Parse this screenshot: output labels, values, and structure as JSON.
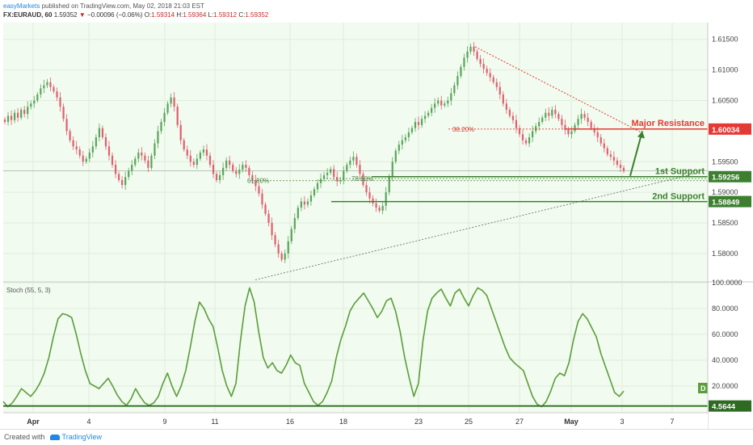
{
  "header": {
    "brand": "easyMarkets",
    "published_text": "published on TradingView.com, May 02, 2018 21:03 EST",
    "symbol": "FX:EURAUD, 60",
    "last": "1.59352",
    "change": "−0.00096 (−0.06%)",
    "o_label": "O:",
    "o_val": "1.59314",
    "h_label": "H:",
    "h_val": "1.59364",
    "l_label": "L:",
    "l_val": "1.59312",
    "c_label": "C:",
    "c_val": "1.59352"
  },
  "footer": {
    "created_with": "Created with",
    "brand": "TradingView"
  },
  "colors": {
    "background": "#f1fbef",
    "candle_up": "#5aa55c",
    "candle_down": "#e06070",
    "support": "#3b7f2f",
    "resistance": "#e53935",
    "stoch": "#5b9d3a"
  },
  "chart_data": [
    {
      "type": "candlestick",
      "symbol": "FX:EURAUD",
      "timeframe": "60",
      "ylim": [
        1.5755,
        1.618
      ],
      "y_ticks": [
        {
          "v": 1.615,
          "label": "1.61500"
        },
        {
          "v": 1.61,
          "label": "1.61000"
        },
        {
          "v": 1.605,
          "label": "1.60500"
        },
        {
          "v": 1.595,
          "label": "1.59500"
        },
        {
          "v": 1.59,
          "label": "1.59000"
        },
        {
          "v": 1.585,
          "label": "1.58500"
        },
        {
          "v": 1.58,
          "label": "1.58000"
        }
      ],
      "x_ticks": [
        "Apr",
        "4",
        "9",
        "11",
        "16",
        "18",
        "23",
        "25",
        "27",
        "May",
        "3",
        "7"
      ],
      "close_trace": [
        [
          1.6015,
          1.6025,
          1.6018,
          1.603,
          1.6022,
          1.6035,
          1.6028
        ],
        [
          1.604,
          1.6045,
          1.605,
          1.606,
          1.607,
          1.6075,
          1.608,
          1.6072,
          1.6065
        ],
        [
          1.6055,
          1.604,
          1.602,
          1.6,
          1.5985,
          1.5975,
          1.597
        ],
        [
          1.596,
          1.595,
          1.5955,
          1.5965,
          1.5975,
          1.599,
          1.6005
        ],
        [
          1.599,
          1.5975,
          1.596,
          1.5945,
          1.593,
          1.592,
          1.5912,
          1.5925
        ],
        [
          1.5935,
          1.5945,
          1.5955,
          1.5965,
          1.596,
          1.5952,
          1.594
        ],
        [
          1.596,
          1.598,
          1.6,
          1.6015,
          1.603,
          1.6045,
          1.6055
        ],
        [
          1.604,
          1.601,
          1.5985,
          1.597,
          1.596,
          1.595,
          1.5945,
          1.5955,
          1.5965,
          1.597
        ],
        [
          1.596,
          1.5945,
          1.593,
          1.592,
          1.5928,
          1.594
        ],
        [
          1.5952,
          1.5945,
          1.5935,
          1.593,
          1.5937
        ],
        [
          1.5945,
          1.594,
          1.5928,
          1.592,
          1.591,
          1.5898,
          1.588,
          1.5865
        ],
        [
          1.585,
          1.583,
          1.5815,
          1.58,
          1.579,
          1.58
        ],
        [
          1.582,
          1.584,
          1.5858,
          1.5875,
          1.5885,
          1.588
        ],
        [
          1.5885,
          1.5895,
          1.5905,
          1.5915,
          1.5922,
          1.5928,
          1.5932
        ],
        [
          1.5938,
          1.5925,
          1.5918,
          1.592,
          1.5935,
          1.5945,
          1.5952
        ],
        [
          1.5958,
          1.5945,
          1.593,
          1.5912,
          1.59,
          1.589,
          1.5882,
          1.5875,
          1.587
        ],
        [
          1.5878,
          1.59,
          1.5925,
          1.595,
          1.5968,
          1.5978,
          1.5985
        ],
        [
          1.599,
          1.5998,
          1.6005,
          1.6015,
          1.601,
          1.602
        ],
        [
          1.6025,
          1.603,
          1.6038,
          1.6045,
          1.605,
          1.6042,
          1.6045
        ],
        [
          1.605,
          1.6062,
          1.6075,
          1.609,
          1.6105,
          1.612,
          1.613,
          1.6138
        ],
        [
          1.613,
          1.6118,
          1.611,
          1.6102,
          1.6095,
          1.6088,
          1.608,
          1.6072,
          1.606,
          1.6045
        ],
        [
          1.6035,
          1.6025,
          1.6018,
          1.6005,
          1.5995,
          1.5985,
          1.598
        ],
        [
          1.599,
          1.6,
          1.6008,
          1.6015,
          1.6022,
          1.603,
          1.6025,
          1.6035,
          1.6028,
          1.602
        ],
        [
          1.601,
          1.6002,
          1.5995,
          1.6,
          1.601,
          1.602,
          1.6028,
          1.6022,
          1.6015,
          1.6005
        ],
        [
          1.5998,
          1.599,
          1.598,
          1.5972,
          1.5962,
          1.5958,
          1.5952,
          1.5945,
          1.594,
          1.5935
        ]
      ],
      "annotations": {
        "major_resistance": {
          "label": "Major Resistance",
          "price": 1.60034,
          "price_label": "1.60034"
        },
        "first_support": {
          "label": "1st Support",
          "price": 1.59256,
          "price_label": "1.59256"
        },
        "second_support": {
          "label": "2nd Support",
          "price": 1.58849,
          "price_label": "1.58849"
        },
        "fib_38": {
          "label": "38.20%"
        },
        "fib_61": {
          "label": "61.80%"
        },
        "fib_78": {
          "label": "78.60%"
        }
      }
    },
    {
      "type": "line",
      "title": "Stoch (55, 5, 3)",
      "ylim": [
        0,
        100
      ],
      "y_ticks": [
        {
          "v": 100,
          "label": "100.0000"
        },
        {
          "v": 80,
          "label": "80.0000"
        },
        {
          "v": 60,
          "label": "60.0000"
        },
        {
          "v": 40,
          "label": "40.0000"
        },
        {
          "v": 20,
          "label": "20.0000"
        }
      ],
      "series_label": "D",
      "baseline": {
        "value": 4.5644,
        "label": "4.5644"
      },
      "values": [
        8,
        4,
        7,
        12,
        18,
        15,
        12,
        16,
        22,
        30,
        42,
        58,
        72,
        76,
        75,
        73,
        60,
        45,
        32,
        22,
        20,
        18,
        22,
        26,
        20,
        13,
        8,
        5,
        10,
        18,
        12,
        7,
        5,
        7,
        12,
        22,
        30,
        20,
        12,
        20,
        32,
        50,
        70,
        85,
        80,
        72,
        66,
        50,
        32,
        20,
        12,
        22,
        55,
        82,
        96,
        85,
        62,
        42,
        34,
        38,
        32,
        30,
        36,
        44,
        38,
        36,
        22,
        15,
        8,
        5,
        8,
        15,
        24,
        42,
        56,
        66,
        78,
        84,
        88,
        92,
        86,
        80,
        73,
        78,
        86,
        88,
        78,
        62,
        42,
        26,
        12,
        22,
        55,
        78,
        88,
        92,
        95,
        88,
        82,
        92,
        95,
        88,
        82,
        90,
        96,
        94,
        90,
        80,
        70,
        60,
        50,
        42,
        38,
        35,
        32,
        22,
        12,
        6,
        4,
        8,
        16,
        26,
        30,
        28,
        38,
        56,
        70,
        76,
        72,
        65,
        58,
        45,
        35,
        25,
        15,
        12,
        16
      ],
      "x_range": [
        0.0,
        1.0
      ]
    }
  ]
}
